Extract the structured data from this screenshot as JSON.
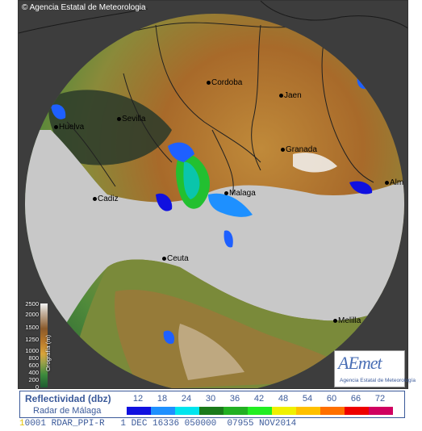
{
  "map": {
    "copyright": "Agencia Estatal de Meteorologia",
    "cities": [
      {
        "id": "cordoba",
        "label": "Cordoba"
      },
      {
        "id": "jaen",
        "label": "Jaen"
      },
      {
        "id": "huelva",
        "label": "Huelva"
      },
      {
        "id": "sevilla",
        "label": "Sevilla"
      },
      {
        "id": "granada",
        "label": "Granada"
      },
      {
        "id": "malaga",
        "label": "Malaga"
      },
      {
        "id": "cadiz",
        "label": "Cadiz"
      },
      {
        "id": "ceuta",
        "label": "Ceuta"
      },
      {
        "id": "melilla",
        "label": "Melilla"
      },
      {
        "id": "almeria",
        "label": "Alm"
      }
    ]
  },
  "elevation_scale": {
    "title": "Orografía (m)",
    "ticks": [
      "2500",
      "2000",
      "1500",
      "1250",
      "1000",
      "800",
      "600",
      "400",
      "200",
      "0"
    ]
  },
  "logo": {
    "brand": "AEmet",
    "subtitle": "Agencia Estatal de Meteorología"
  },
  "legend": {
    "title": "Reflectividad (dbz)",
    "subtitle": "Radar de Málaga",
    "values": [
      "12",
      "18",
      "24",
      "30",
      "36",
      "42",
      "48",
      "54",
      "60",
      "66",
      "72"
    ],
    "colors": [
      "#1010e0",
      "#1e90ff",
      "#00e5ee",
      "#1a7a1a",
      "#22b022",
      "#22ee22",
      "#f0f000",
      "#ffc000",
      "#ff7000",
      "#ee0000",
      "#d00060"
    ]
  },
  "status": {
    "text": "0001 RDAR_PPI-R   1 DEC 16336 050000  07955 NOV2014",
    "marker": "1"
  }
}
